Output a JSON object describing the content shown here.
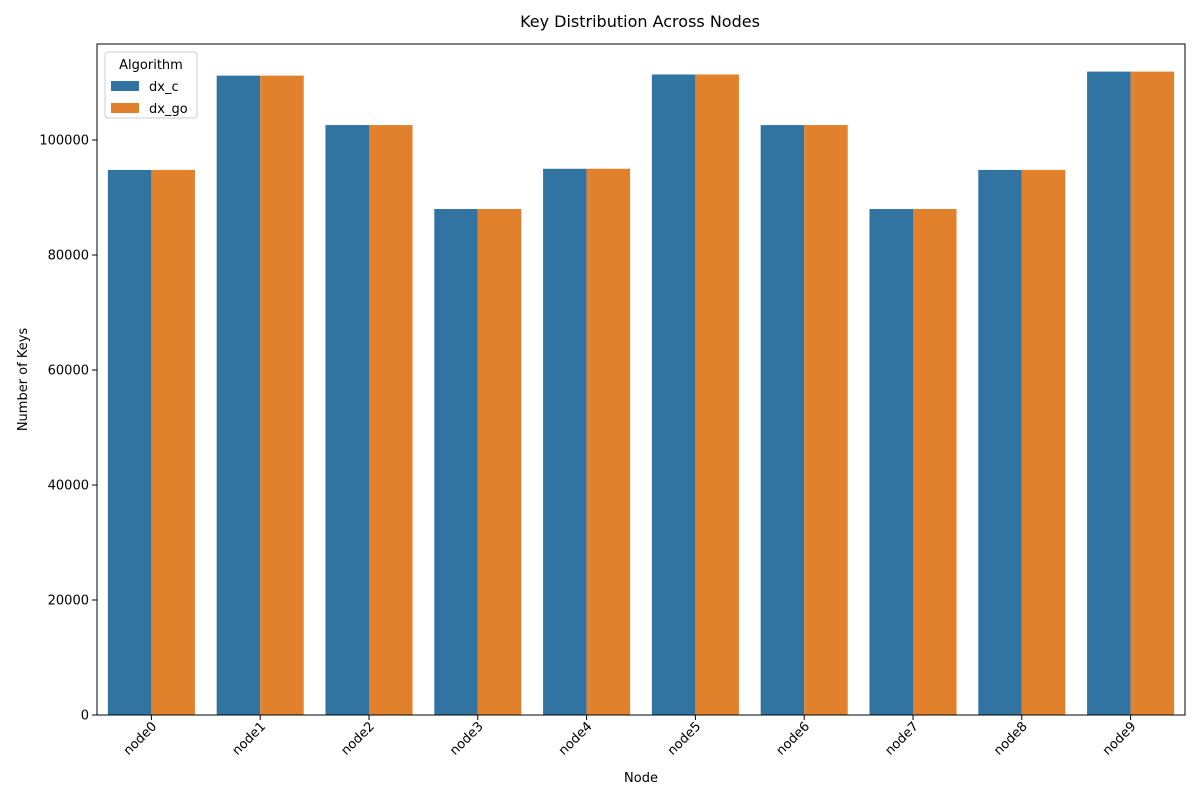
{
  "chart_data": {
    "type": "bar",
    "title": "Key Distribution Across Nodes",
    "xlabel": "Node",
    "ylabel": "Number of Keys",
    "categories": [
      "node0",
      "node1",
      "node2",
      "node3",
      "node4",
      "node5",
      "node6",
      "node7",
      "node8",
      "node9"
    ],
    "series": [
      {
        "name": "dx_c",
        "color": "#3274a1",
        "values": [
          94800,
          111200,
          102600,
          88000,
          95000,
          111400,
          102600,
          88000,
          94800,
          111900
        ]
      },
      {
        "name": "dx_go",
        "color": "#e1812c",
        "values": [
          94800,
          111200,
          102600,
          88000,
          95000,
          111400,
          102600,
          88000,
          94800,
          111900
        ]
      }
    ],
    "ylim": [
      0,
      116700
    ],
    "yticks": [
      0,
      20000,
      40000,
      60000,
      80000,
      100000
    ],
    "grid": false,
    "legend": {
      "title": "Algorithm",
      "position": "top-left"
    }
  }
}
